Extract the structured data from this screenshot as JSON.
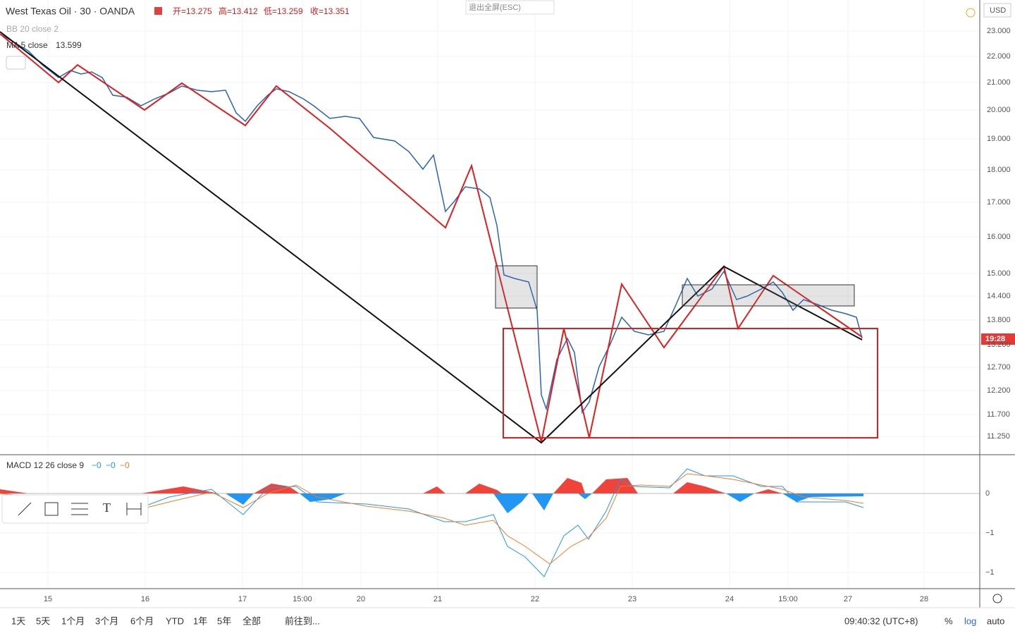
{
  "header": {
    "symbol": "West Texas Oil · 30 · OANDA",
    "open": "开=13.275",
    "high": "高=13.412",
    "low": "低=13.259",
    "close": "收=13.351",
    "bb": "BB 20 close 2",
    "ma": "MA 5 close",
    "ma_value": "13.599",
    "exit_fullscreen": "退出全屏(ESC)",
    "currency": "USD",
    "countdown": "19:28"
  },
  "price_axis": [
    "23.000",
    "22.000",
    "21.000",
    "20.000",
    "19.000",
    "18.000",
    "17.000",
    "16.000",
    "15.000",
    "14.400",
    "13.800",
    "13.200",
    "12.700",
    "12.200",
    "11.700",
    "11.250"
  ],
  "macd": {
    "label": "MACD 12 26 close 9",
    "v1": "−0",
    "v2": "−0",
    "v3": "−0",
    "axis": [
      "0",
      "−1",
      "−1"
    ]
  },
  "time_axis": [
    "15",
    "16",
    "17",
    "15:00",
    "20",
    "21",
    "22",
    "23",
    "24",
    "15:00",
    "27",
    "28"
  ],
  "bottom_bar": {
    "ranges": [
      "1天",
      "5天",
      "1个月",
      "3个月",
      "6个月",
      "YTD",
      "1年",
      "5年",
      "全部"
    ],
    "goto": "前往到...",
    "clock": "09:40:32 (UTC+8)",
    "percent": "%",
    "log": "log",
    "auto": "auto"
  }
}
